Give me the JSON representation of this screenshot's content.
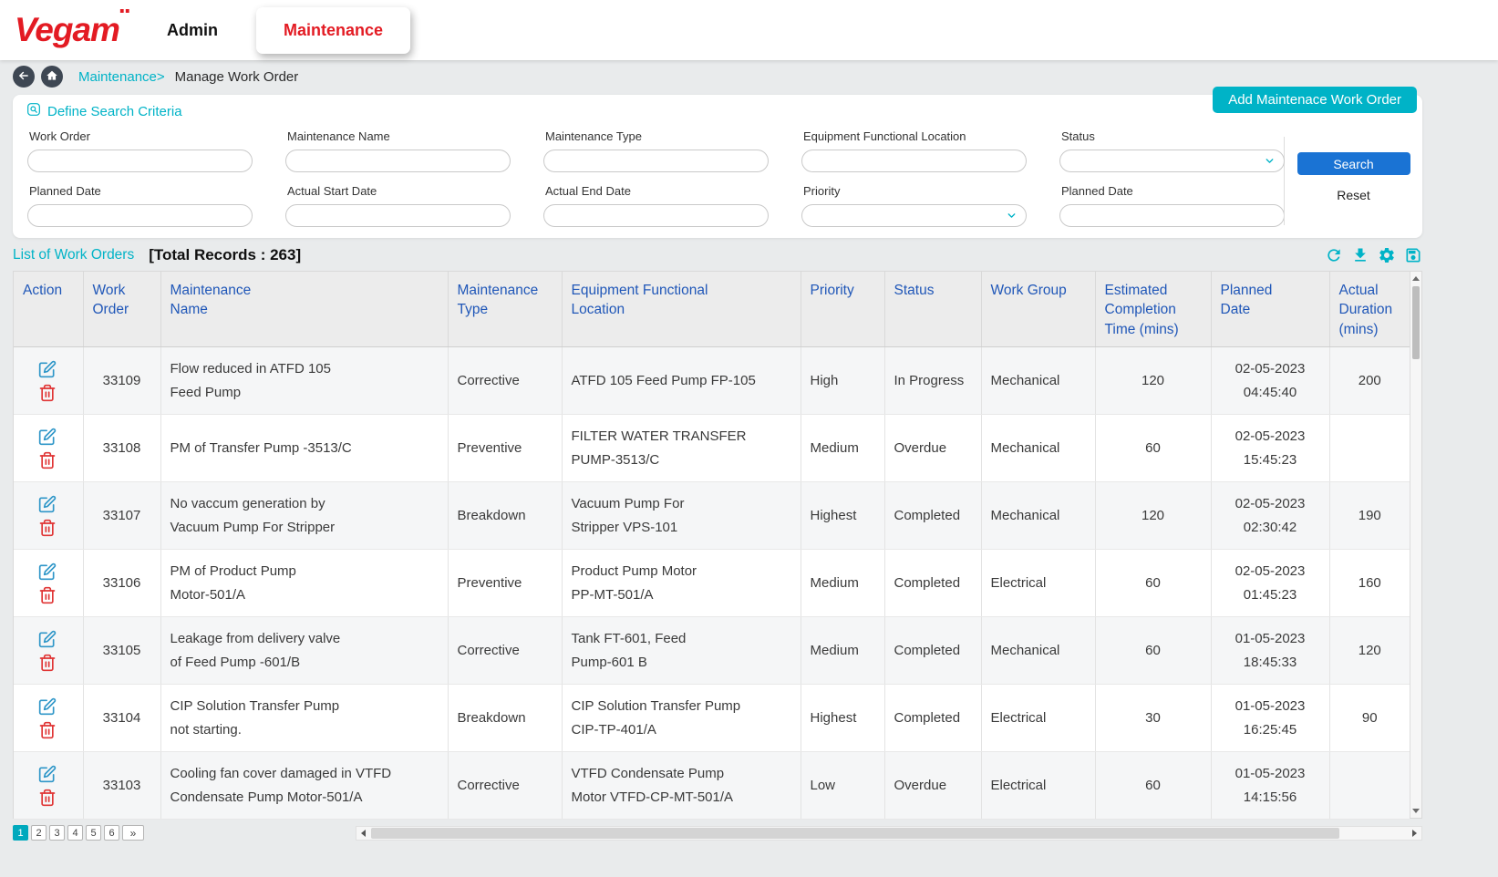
{
  "colors": {
    "accent_teal": "#00b3c7",
    "primary_blue": "#1a73d4",
    "brand_red": "#e31b23",
    "table_header_text": "#2057b8"
  },
  "header": {
    "logo_text": "Vegam",
    "tabs": [
      {
        "label": "Admin",
        "active": false
      },
      {
        "label": "Maintenance",
        "active": true
      }
    ]
  },
  "breadcrumb": {
    "section_link": "Maintenance>",
    "current_page": "Manage Work Order"
  },
  "search": {
    "title": "Define Search Criteria",
    "add_button": "Add Maintenace Work Order",
    "search_button": "Search",
    "reset_button": "Reset",
    "fields_row1": [
      {
        "label": "Work Order",
        "type": "text",
        "value": "",
        "placeholder": ""
      },
      {
        "label": "Maintenance Name",
        "type": "text",
        "value": "",
        "placeholder": ""
      },
      {
        "label": "Maintenance Type",
        "type": "text",
        "value": "",
        "placeholder": ""
      },
      {
        "label": "Equipment Functional Location",
        "type": "text",
        "value": "",
        "placeholder": ""
      },
      {
        "label": "Status",
        "type": "select",
        "value": ""
      }
    ],
    "fields_row2": [
      {
        "label": "Planned Date",
        "type": "text",
        "value": "",
        "placeholder": ""
      },
      {
        "label": "Actual Start Date",
        "type": "text",
        "value": "",
        "placeholder": ""
      },
      {
        "label": "Actual End Date",
        "type": "text",
        "value": "",
        "placeholder": ""
      },
      {
        "label": "Priority",
        "type": "select",
        "value": ""
      },
      {
        "label": "Planned Date",
        "type": "text",
        "value": "",
        "placeholder": ""
      }
    ]
  },
  "list": {
    "title": "List of Work Orders",
    "total_records": "[Total Records : 263]"
  },
  "table": {
    "headers": [
      "Action",
      "Work\nOrder",
      "Maintenance\nName",
      "Maintenance\nType",
      "Equipment Functional\nLocation",
      "Priority",
      "Status",
      "Work Group",
      "Estimated\nCompletion\nTime (mins)",
      "Planned\nDate",
      "Actual\nDuration\n(mins)"
    ],
    "rows": [
      {
        "work_order": "33109",
        "maintenance_name": "Flow reduced in ATFD 105\nFeed Pump",
        "maintenance_type": "Corrective",
        "equipment_functional_location": "ATFD 105 Feed Pump FP-105",
        "priority": "High",
        "status": "In Progress",
        "work_group": "Mechanical",
        "estimated_completion_mins": "120",
        "planned_date": "02-05-2023\n04:45:40",
        "actual_duration_mins": "200"
      },
      {
        "work_order": "33108",
        "maintenance_name": "PM of Transfer Pump -3513/C",
        "maintenance_type": "Preventive",
        "equipment_functional_location": "FILTER WATER TRANSFER\nPUMP-3513/C",
        "priority": "Medium",
        "status": "Overdue",
        "work_group": "Mechanical",
        "estimated_completion_mins": "60",
        "planned_date": "02-05-2023\n15:45:23",
        "actual_duration_mins": ""
      },
      {
        "work_order": "33107",
        "maintenance_name": "No vaccum generation by\nVacuum Pump For Stripper",
        "maintenance_type": "Breakdown",
        "equipment_functional_location": "Vacuum Pump For\nStripper VPS-101",
        "priority": "Highest",
        "status": "Completed",
        "work_group": "Mechanical",
        "estimated_completion_mins": "120",
        "planned_date": "02-05-2023\n02:30:42",
        "actual_duration_mins": "190"
      },
      {
        "work_order": "33106",
        "maintenance_name": "PM of Product Pump\nMotor-501/A",
        "maintenance_type": "Preventive",
        "equipment_functional_location": "Product Pump Motor\nPP-MT-501/A",
        "priority": "Medium",
        "status": "Completed",
        "work_group": "Electrical",
        "estimated_completion_mins": "60",
        "planned_date": "02-05-2023\n01:45:23",
        "actual_duration_mins": "160"
      },
      {
        "work_order": "33105",
        "maintenance_name": "Leakage from delivery valve\nof Feed Pump -601/B",
        "maintenance_type": "Corrective",
        "equipment_functional_location": "Tank FT-601, Feed\nPump-601 B",
        "priority": "Medium",
        "status": "Completed",
        "work_group": "Mechanical",
        "estimated_completion_mins": "60",
        "planned_date": "01-05-2023\n18:45:33",
        "actual_duration_mins": "120"
      },
      {
        "work_order": "33104",
        "maintenance_name": "CIP Solution Transfer Pump\nnot starting.",
        "maintenance_type": "Breakdown",
        "equipment_functional_location": "CIP Solution Transfer Pump\nCIP-TP-401/A",
        "priority": "Highest",
        "status": "Completed",
        "work_group": "Electrical",
        "estimated_completion_mins": "30",
        "planned_date": "01-05-2023\n16:25:45",
        "actual_duration_mins": "90"
      },
      {
        "work_order": "33103",
        "maintenance_name": "Cooling fan cover damaged in VTFD\nCondensate Pump Motor-501/A",
        "maintenance_type": "Corrective",
        "equipment_functional_location": "VTFD Condensate Pump\nMotor VTFD-CP-MT-501/A",
        "priority": "Low",
        "status": "Overdue",
        "work_group": "Electrical",
        "estimated_completion_mins": "60",
        "planned_date": "01-05-2023\n14:15:56",
        "actual_duration_mins": ""
      }
    ]
  },
  "pagination": {
    "pages": [
      "1",
      "2",
      "3",
      "4",
      "5",
      "6"
    ],
    "active_index": 0,
    "next_label": "»"
  },
  "icons": {
    "breadcrumb": [
      "back-icon",
      "home-icon"
    ],
    "search_section": "search-icon",
    "select_indicator": "chevron-down-icon",
    "table_toolbar": [
      "refresh-icon",
      "download-icon",
      "settings-icon",
      "save-icon"
    ],
    "row_actions": [
      "edit-icon",
      "delete-icon"
    ]
  }
}
